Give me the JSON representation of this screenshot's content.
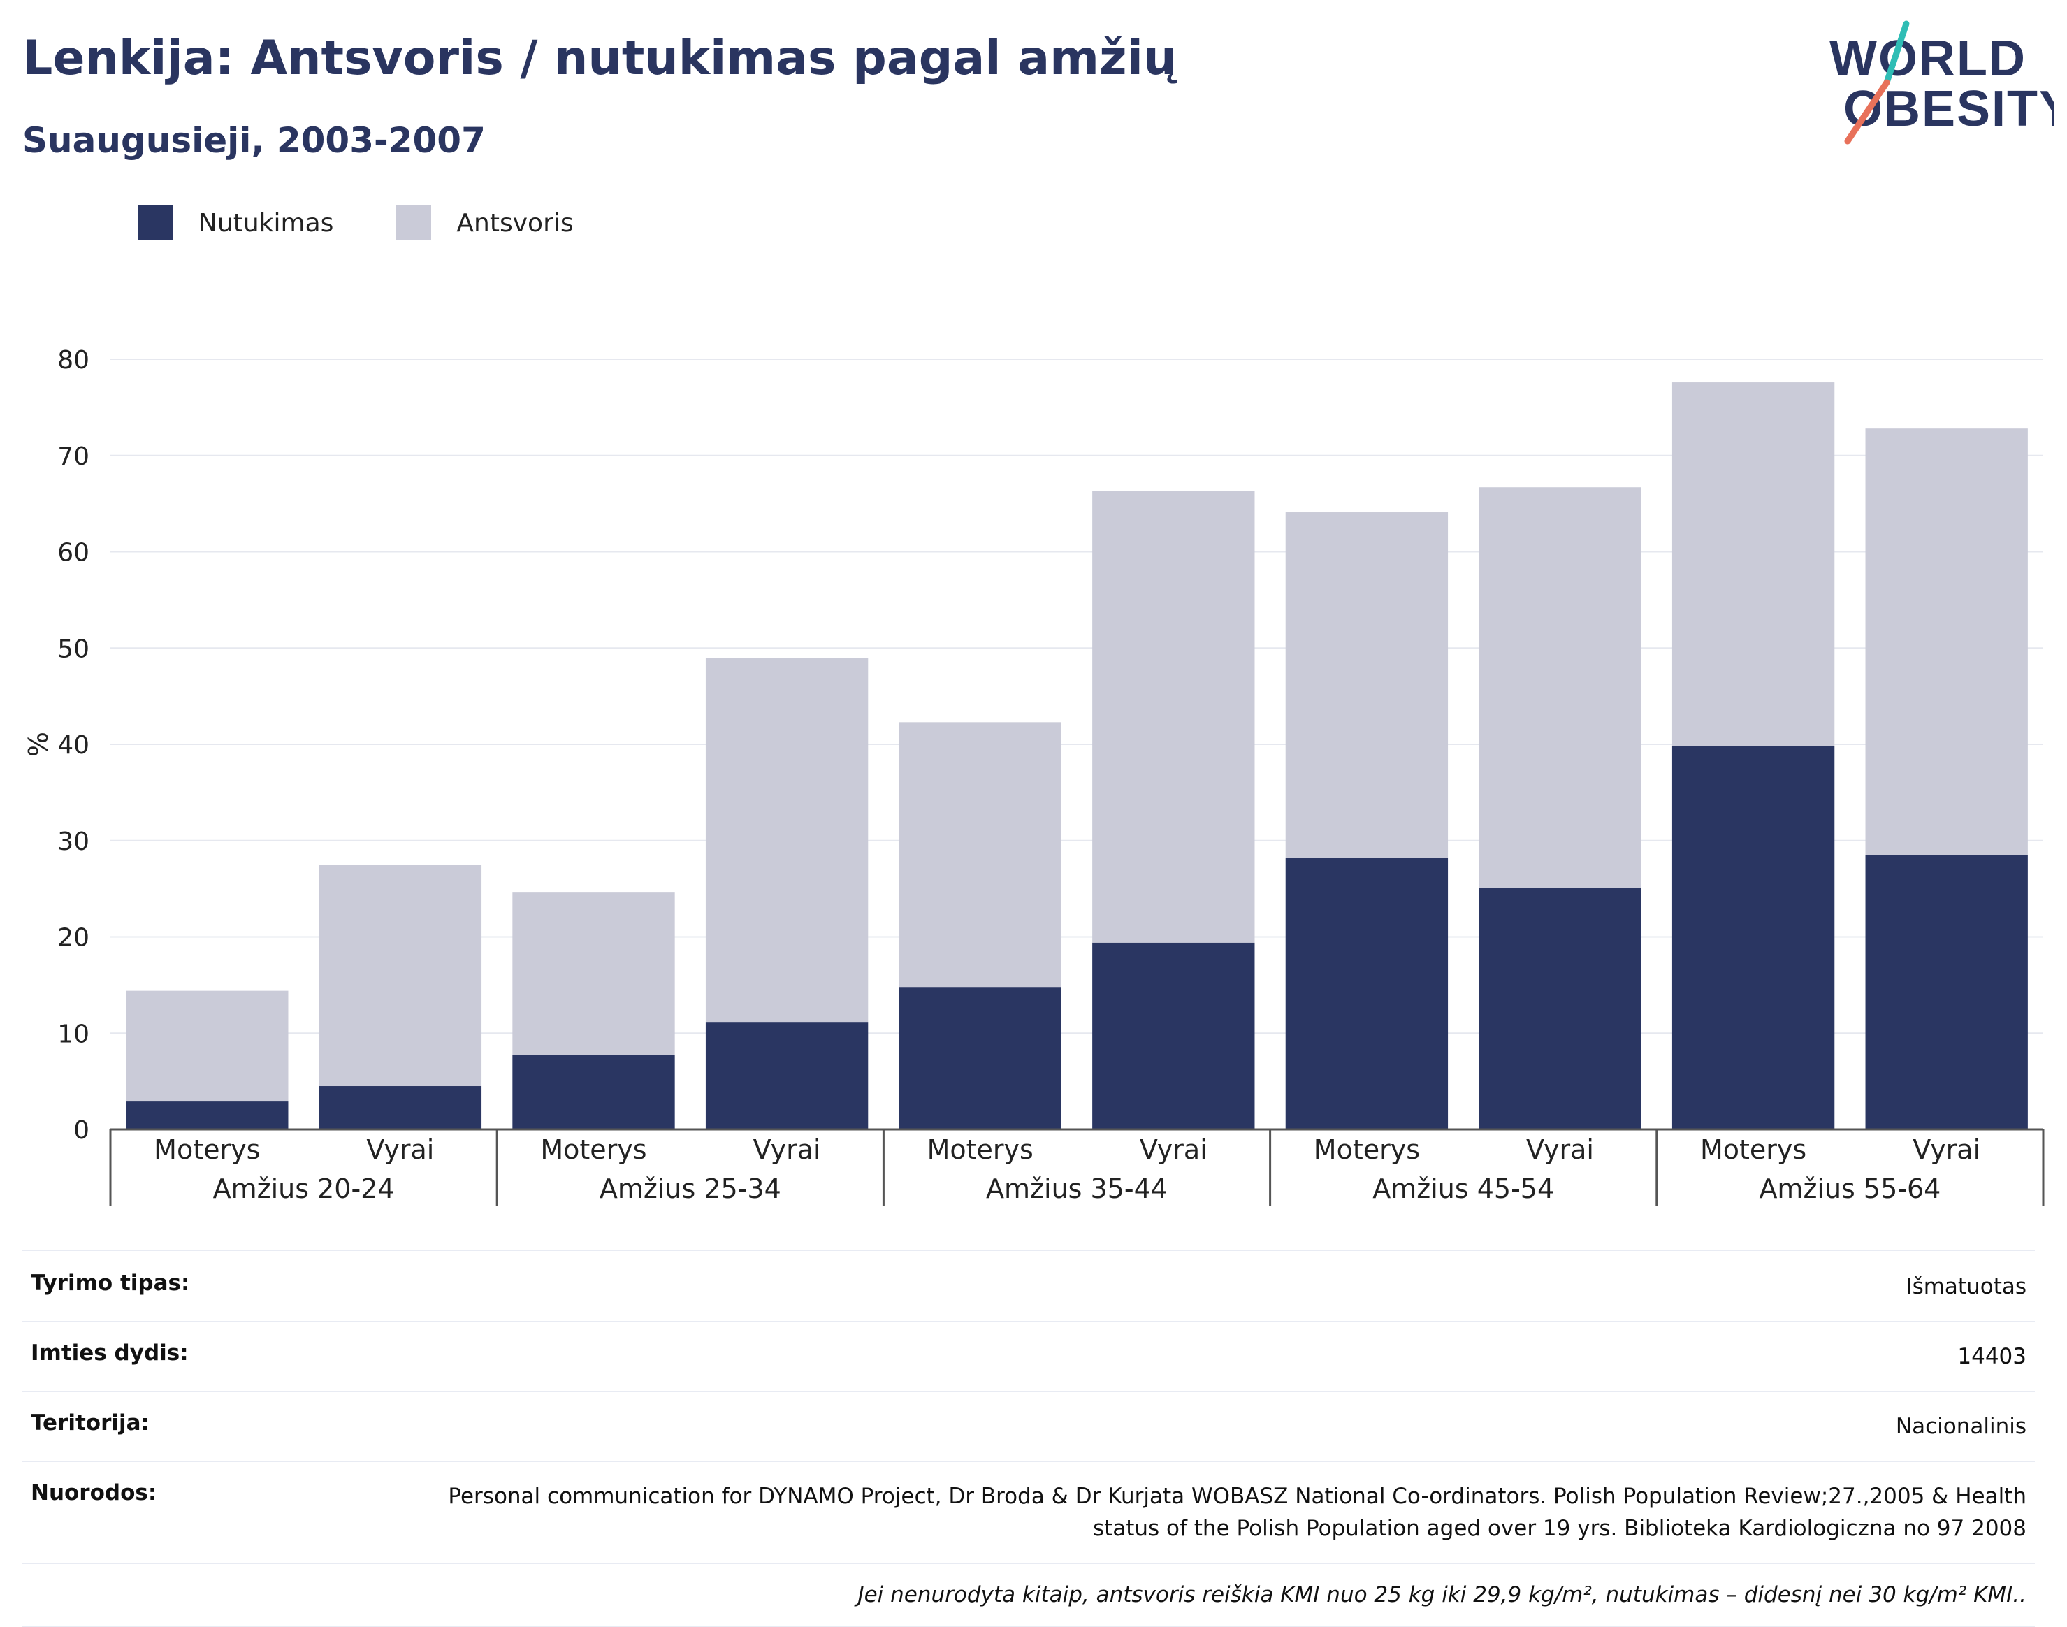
{
  "header": {
    "title": "Lenkija: Antsvoris / nutukimas pagal amžių",
    "subtitle": "Suaugusieji, 2003-2007"
  },
  "logo": {
    "line1": "WORLD",
    "line2": "OBESITY"
  },
  "legend": [
    {
      "label": "Nutukimas",
      "color": "#2a3662"
    },
    {
      "label": "Antsvoris",
      "color": "#cacbd8"
    }
  ],
  "chart_data": {
    "type": "bar",
    "stacked": true,
    "ylabel": "%",
    "ylim": [
      0,
      80
    ],
    "yticks": [
      0,
      10,
      20,
      30,
      40,
      50,
      60,
      70,
      80
    ],
    "grid": true,
    "legend_position": "top-left",
    "groups": [
      "Amžius 20-24",
      "Amžius 25-34",
      "Amžius 35-44",
      "Amžius 45-54",
      "Amžius 55-64"
    ],
    "categories": [
      "Moterys",
      "Vyrai",
      "Moterys",
      "Vyrai",
      "Moterys",
      "Vyrai",
      "Moterys",
      "Vyrai",
      "Moterys",
      "Vyrai"
    ],
    "series": [
      {
        "name": "Nutukimas",
        "color": "#2a3662",
        "values": [
          2.9,
          4.5,
          7.7,
          11.1,
          14.8,
          19.4,
          28.2,
          25.1,
          39.8,
          28.5
        ]
      },
      {
        "name": "Antsvoris",
        "color": "#cacbd8",
        "values": [
          11.5,
          23.0,
          16.9,
          37.9,
          27.5,
          46.9,
          35.9,
          41.6,
          37.8,
          44.3
        ]
      }
    ]
  },
  "meta": {
    "rows": [
      {
        "label": "Tyrimo tipas:",
        "value": "Išmatuotas"
      },
      {
        "label": "Imties dydis:",
        "value": "14403"
      },
      {
        "label": "Teritorija:",
        "value": "Nacionalinis"
      },
      {
        "label": "Nuorodos:",
        "value": "Personal communication for DYNAMO Project, Dr Broda & Dr Kurjata WOBASZ National Co-ordinators. Polish Population Review;27.,2005 & Health status of the Polish Population aged over 19 yrs. Biblioteka Kardiologiczna no 97 2008"
      }
    ],
    "note": "Jei nenurodyta kitaip, antsvoris reiškia KMI nuo 25 kg iki 29,9 kg/m², nutukimas – didesnį nei 30 kg/m² KMI.."
  }
}
